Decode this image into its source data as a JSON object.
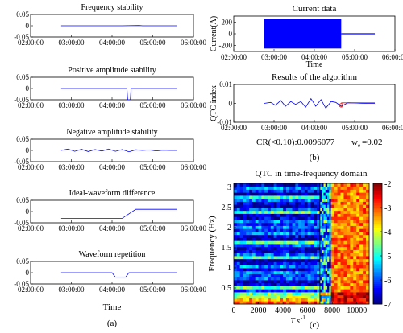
{
  "chart_data": [
    {
      "type": "line",
      "title": "Frequency stability",
      "x_ticks": [
        "02:00:00",
        "03:00:00",
        "04:00:00",
        "05:00:00",
        "06:00:00"
      ],
      "y_ticks": [
        "0.05",
        "0",
        "-0.05"
      ],
      "ylim": [
        -0.05,
        0.05
      ],
      "series": [
        {
          "color": "#0000ff",
          "x": [
            "02:45:00",
            "04:15:00",
            "04:40:00",
            "04:45:00",
            "05:35:00"
          ],
          "y": [
            0,
            0,
            0.001,
            0,
            0
          ]
        }
      ]
    },
    {
      "type": "line",
      "title": "Positive amplitude stability",
      "x_ticks": [
        "02:00:00",
        "03:00:00",
        "04:00:00",
        "05:00:00",
        "06:00:00"
      ],
      "y_ticks": [
        "0.05",
        "0",
        "-0.05"
      ],
      "ylim": [
        -0.05,
        0.05
      ],
      "series": [
        {
          "color": "#0000ff",
          "x": [
            "02:45:00",
            "04:22:00",
            "04:23:00",
            "04:24:00",
            "04:27:00",
            "04:28:00",
            "05:35:00"
          ],
          "y": [
            0,
            0,
            -0.05,
            -0.05,
            -0.05,
            0,
            0
          ]
        }
      ]
    },
    {
      "type": "line",
      "title": "Negative amplitude stability",
      "x_ticks": [
        "02:00:00",
        "03:00:00",
        "04:00:00",
        "05:00:00",
        "06:00:00"
      ],
      "y_ticks": [
        "0.05",
        "0",
        "-0.05"
      ],
      "ylim": [
        -0.05,
        0.05
      ],
      "series": [
        {
          "color": "#0000ff",
          "x": [
            "02:45:00",
            "02:55:00",
            "03:05:00",
            "03:15:00",
            "03:25:00",
            "03:35:00",
            "03:45:00",
            "03:55:00",
            "04:05:00",
            "04:15:00",
            "04:25:00",
            "04:35:00",
            "04:45:00",
            "04:55:00",
            "05:05:00",
            "05:15:00",
            "05:25:00",
            "05:35:00"
          ],
          "y": [
            0,
            0.006,
            -0.004,
            0.005,
            -0.005,
            0.004,
            -0.003,
            0.006,
            -0.004,
            0.004,
            -0.006,
            0.003,
            0,
            0.002,
            -0.002,
            0.001,
            0,
            0
          ]
        }
      ]
    },
    {
      "type": "line",
      "title": "Ideal-waveform difference",
      "x_ticks": [
        "02:00:00",
        "03:00:00",
        "04:00:00",
        "05:00:00",
        "06:00:00"
      ],
      "y_ticks": [
        "0.05",
        "0",
        "-0.05"
      ],
      "ylim": [
        -0.05,
        0.05
      ],
      "series": [
        {
          "color": "#0000ff",
          "x": [
            "02:45:00",
            "04:15:00",
            "04:35:00",
            "05:35:00"
          ],
          "y": [
            -0.03,
            -0.03,
            0.01,
            0.01
          ]
        }
      ]
    },
    {
      "type": "line",
      "title": "Waveform repetition",
      "xlabel": "Time",
      "x_ticks": [
        "02:00:00",
        "03:00:00",
        "04:00:00",
        "05:00:00",
        "06:00:00"
      ],
      "y_ticks": [
        "0.05",
        "0",
        "-0.05"
      ],
      "ylim": [
        -0.05,
        0.05
      ],
      "series": [
        {
          "color": "#0000ff",
          "x": [
            "02:45:00",
            "04:00:00",
            "04:05:00",
            "04:20:00",
            "04:25:00",
            "05:35:00"
          ],
          "y": [
            0,
            0,
            -0.02,
            -0.02,
            0,
            0
          ]
        }
      ]
    },
    {
      "type": "area",
      "title": "Current data",
      "xlabel": "Time",
      "ylabel": "Current(A)",
      "x_ticks": [
        "02:00:00",
        "03:00:00",
        "04:00:00",
        "05:00:00",
        "06:00:00"
      ],
      "y_ticks": [
        "200",
        "0",
        "-200"
      ],
      "ylim": [
        -300,
        300
      ],
      "series": [
        {
          "color": "#0000ff",
          "x_range": [
            "02:45:00",
            "04:40:00"
          ],
          "y_range": [
            -250,
            250
          ]
        },
        {
          "color": "#0000ff",
          "x": [
            "04:40:00",
            "05:30:00"
          ],
          "y": [
            0,
            0
          ]
        }
      ]
    },
    {
      "type": "line",
      "title": "Results of the algorithm",
      "ylabel": "QTC index",
      "x_ticks": [
        "02:00:00",
        "03:00:00",
        "04:00:00",
        "05:00:00",
        "06:00:00"
      ],
      "y_ticks": [
        "0.01",
        "0",
        "-0.01"
      ],
      "ylim": [
        -0.01,
        0.01
      ],
      "series": [
        {
          "color": "#0000ff",
          "x": [
            "02:45:00",
            "02:55:00",
            "03:02:00",
            "03:10:00",
            "03:17:00",
            "03:25:00",
            "03:32:00",
            "03:40:00",
            "03:47:00",
            "03:55:00",
            "04:02:00",
            "04:10:00",
            "04:17:00",
            "04:25:00",
            "04:32:00",
            "04:40:00",
            "04:50:00",
            "05:00:00",
            "05:10:00",
            "05:20:00",
            "05:30:00"
          ],
          "y": [
            0,
            0.0005,
            -0.001,
            0.0015,
            -0.0015,
            0.001,
            -0.0005,
            0.001,
            -0.002,
            0.0025,
            -0.0015,
            0.002,
            -0.0025,
            0.001,
            0.0005,
            -0.0015,
            0.0003,
            0.0002,
            0.0001,
            0,
            0
          ]
        }
      ],
      "threshold": {
        "color": "#ff0000",
        "value": 0.0003
      },
      "marker": {
        "x": "04:40:00",
        "y": -0.001,
        "color": "#ff0000"
      },
      "caption_cr": "CR(<0.10):0.0096077",
      "caption_w": "w",
      "caption_w_sub": "e",
      "caption_w_value": "=0.02"
    },
    {
      "type": "heatmap",
      "title": "QTC in time-frequency domain",
      "xlabel": "T s",
      "xlabel_sup": "-1",
      "ylabel": "Frequency (Hz)",
      "x_ticks": [
        "0",
        "2000",
        "4000",
        "6000",
        "8000",
        "10000"
      ],
      "y_ticks": [
        "0.5",
        "1",
        "1.5",
        "2",
        "2.5",
        "3"
      ],
      "xlim": [
        0,
        11000
      ],
      "ylim": [
        0.1,
        3.1
      ],
      "colorbar_ticks": [
        "-2",
        "-3",
        "-4",
        "-5",
        "-6",
        "-7"
      ],
      "colorbar_range": [
        -7,
        -2
      ],
      "regions": [
        {
          "x": [
            0,
            7000
          ],
          "description_level": -6.3
        },
        {
          "x": [
            7000,
            7900
          ],
          "description_level": -5.5
        },
        {
          "x": [
            7900,
            11000
          ],
          "description_level": -3.2
        }
      ]
    }
  ],
  "labels": {
    "a": "(a)",
    "b": "(b)",
    "c": "(c)"
  },
  "colors": {
    "line": "#0000ff",
    "marker": "#ff0000",
    "axis": "#000000",
    "grid_text": "#000000"
  }
}
